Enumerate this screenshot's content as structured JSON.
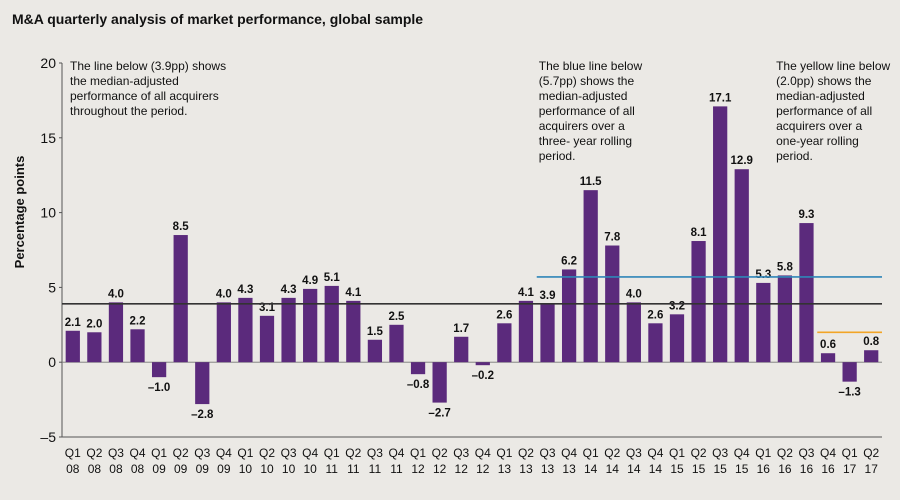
{
  "chart_data": {
    "type": "bar",
    "title": "M&A quarterly analysis of market performance, global sample",
    "y_label": "Percentage points",
    "categories": [
      [
        "Q1",
        "08"
      ],
      [
        "Q2",
        "08"
      ],
      [
        "Q3",
        "08"
      ],
      [
        "Q4",
        "08"
      ],
      [
        "Q1",
        "09"
      ],
      [
        "Q2",
        "09"
      ],
      [
        "Q3",
        "09"
      ],
      [
        "Q4",
        "09"
      ],
      [
        "Q1",
        "10"
      ],
      [
        "Q2",
        "10"
      ],
      [
        "Q3",
        "10"
      ],
      [
        "Q4",
        "10"
      ],
      [
        "Q1",
        "11"
      ],
      [
        "Q2",
        "11"
      ],
      [
        "Q3",
        "11"
      ],
      [
        "Q4",
        "11"
      ],
      [
        "Q1",
        "12"
      ],
      [
        "Q2",
        "12"
      ],
      [
        "Q3",
        "12"
      ],
      [
        "Q4",
        "12"
      ],
      [
        "Q1",
        "13"
      ],
      [
        "Q2",
        "13"
      ],
      [
        "Q3",
        "13"
      ],
      [
        "Q4",
        "13"
      ],
      [
        "Q1",
        "14"
      ],
      [
        "Q2",
        "14"
      ],
      [
        "Q3",
        "14"
      ],
      [
        "Q4",
        "14"
      ],
      [
        "Q1",
        "15"
      ],
      [
        "Q2",
        "15"
      ],
      [
        "Q3",
        "15"
      ],
      [
        "Q4",
        "15"
      ],
      [
        "Q1",
        "16"
      ],
      [
        "Q2",
        "16"
      ],
      [
        "Q3",
        "16"
      ],
      [
        "Q4",
        "16"
      ],
      [
        "Q1",
        "17"
      ],
      [
        "Q2",
        "17"
      ]
    ],
    "values": [
      2.1,
      2.0,
      4.0,
      2.2,
      -1.0,
      8.5,
      -2.8,
      4.0,
      4.3,
      3.1,
      4.3,
      4.9,
      5.1,
      4.1,
      1.5,
      2.5,
      -0.8,
      -2.7,
      1.7,
      -0.2,
      2.6,
      4.1,
      3.9,
      6.2,
      11.5,
      7.8,
      4.0,
      2.6,
      3.2,
      8.1,
      17.1,
      12.9,
      5.3,
      5.8,
      9.3,
      0.6,
      -1.3,
      0.8
    ],
    "value_labels": [
      "2.1",
      "2.0",
      "4.0",
      "2.2",
      "–1.0",
      "8.5",
      "–2.8",
      "4.0",
      "4.3",
      "3.1",
      "4.3",
      "4.9",
      "5.1",
      "4.1",
      "1.5",
      "2.5",
      "–0.8",
      "–2.7",
      "1.7",
      "–0.2",
      "2.6",
      "4.1",
      "3.9",
      "6.2",
      "11.5",
      "7.8",
      "4.0",
      "2.6",
      "3.2",
      "8.1",
      "17.1",
      "12.9",
      "5.3",
      "5.8",
      "9.3",
      "0.6",
      "–1.3",
      "0.8"
    ],
    "color": "#5b2a7c",
    "ylim": [
      -5,
      20
    ],
    "yticks": [
      {
        "value": -5,
        "label": "–5"
      },
      0,
      5,
      10,
      15,
      20
    ],
    "reference_lines": [
      {
        "value": 3.9,
        "color": "#333333",
        "from": 0
      },
      {
        "value": 5.7,
        "color": "#2f86b8",
        "from": 22
      },
      {
        "value": 2.0,
        "color": "#f2a527",
        "from": 35
      }
    ],
    "annotations": [
      {
        "lines": [
          "The line below (3.9pp) shows",
          "the median-adjusted",
          "performance of all acquirers",
          "throughout the period."
        ],
        "at": 0
      },
      {
        "lines": [
          "The blue line below",
          "(5.7pp) shows the",
          "median-adjusted",
          "performance of all",
          "acquirers over a",
          "three- year rolling",
          "period."
        ],
        "at": 22
      },
      {
        "lines": [
          "The yellow line below",
          "(2.0pp) shows the",
          "median-adjusted",
          "performance of all",
          "acquirers over a",
          "one-year rolling",
          "period."
        ],
        "at": 33
      }
    ]
  }
}
